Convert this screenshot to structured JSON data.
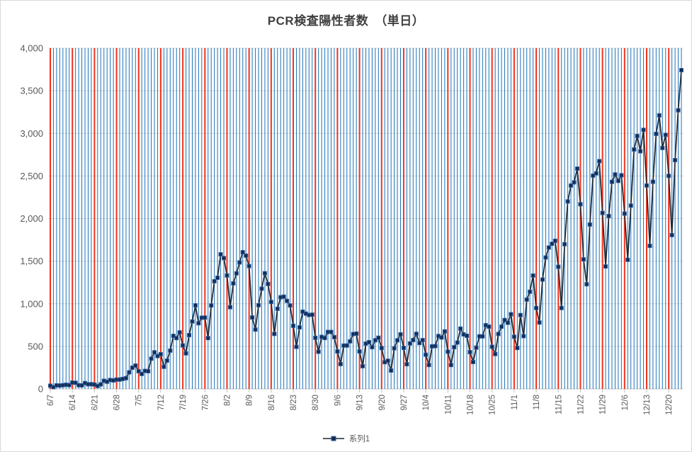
{
  "chart_data": {
    "type": "line",
    "title": "PCR検査陽性者数　（単日）",
    "legend_position": "bottom-center",
    "ylim": [
      0,
      4000
    ],
    "y_tick_step": 500,
    "y_tick_labels": [
      "0",
      "500",
      "1,000",
      "1,500",
      "2,000",
      "2,500",
      "3,000",
      "3,500",
      "4,000"
    ],
    "x_label_interval_days": 7,
    "x_tick_labels": [
      "6/7",
      "6/14",
      "6/21",
      "6/28",
      "7/5",
      "7/12",
      "7/19",
      "7/26",
      "8/2",
      "8/9",
      "8/16",
      "8/23",
      "8/30",
      "9/6",
      "9/13",
      "9/20",
      "9/27",
      "10/4",
      "10/11",
      "10/18",
      "10/25",
      "11/1",
      "11/8",
      "11/15",
      "11/22",
      "11/29",
      "12/6",
      "12/13",
      "12/20"
    ],
    "grid": {
      "horizontal": true,
      "vertical_daily_blue": true,
      "vertical_weekly_red": true
    },
    "x": [
      "6/7",
      "6/8",
      "6/9",
      "6/10",
      "6/11",
      "6/12",
      "6/13",
      "6/14",
      "6/15",
      "6/16",
      "6/17",
      "6/18",
      "6/19",
      "6/20",
      "6/21",
      "6/22",
      "6/23",
      "6/24",
      "6/25",
      "6/26",
      "6/27",
      "6/28",
      "6/29",
      "6/30",
      "7/1",
      "7/2",
      "7/3",
      "7/4",
      "7/5",
      "7/6",
      "7/7",
      "7/8",
      "7/9",
      "7/10",
      "7/11",
      "7/12",
      "7/13",
      "7/14",
      "7/15",
      "7/16",
      "7/17",
      "7/18",
      "7/19",
      "7/20",
      "7/21",
      "7/22",
      "7/23",
      "7/24",
      "7/25",
      "7/26",
      "7/27",
      "7/28",
      "7/29",
      "7/30",
      "7/31",
      "8/1",
      "8/2",
      "8/3",
      "8/4",
      "8/5",
      "8/6",
      "8/7",
      "8/8",
      "8/9",
      "8/10",
      "8/11",
      "8/12",
      "8/13",
      "8/14",
      "8/15",
      "8/16",
      "8/17",
      "8/18",
      "8/19",
      "8/20",
      "8/21",
      "8/22",
      "8/23",
      "8/24",
      "8/25",
      "8/26",
      "8/27",
      "8/28",
      "8/29",
      "8/30",
      "8/31",
      "9/1",
      "9/2",
      "9/3",
      "9/4",
      "9/5",
      "9/6",
      "9/7",
      "9/8",
      "9/9",
      "9/10",
      "9/11",
      "9/12",
      "9/13",
      "9/14",
      "9/15",
      "9/16",
      "9/17",
      "9/18",
      "9/19",
      "9/20",
      "9/21",
      "9/22",
      "9/23",
      "9/24",
      "9/25",
      "9/26",
      "9/27",
      "9/28",
      "9/29",
      "9/30",
      "10/1",
      "10/2",
      "10/3",
      "10/4",
      "10/5",
      "10/6",
      "10/7",
      "10/8",
      "10/9",
      "10/10",
      "10/11",
      "10/12",
      "10/13",
      "10/14",
      "10/15",
      "10/16",
      "10/17",
      "10/18",
      "10/19",
      "10/20",
      "10/21",
      "10/22",
      "10/23",
      "10/24",
      "10/25",
      "10/26",
      "10/27",
      "10/28",
      "10/29",
      "10/30",
      "10/31",
      "11/1",
      "11/2",
      "11/3",
      "11/4",
      "11/5",
      "11/6",
      "11/7",
      "11/8",
      "11/9",
      "11/10",
      "11/11",
      "11/12",
      "11/13",
      "11/14",
      "11/15",
      "11/16",
      "11/17",
      "11/18",
      "11/19",
      "11/20",
      "11/21",
      "11/22",
      "11/23",
      "11/24",
      "11/25",
      "11/26",
      "11/27",
      "11/28",
      "11/29",
      "11/30",
      "12/1",
      "12/2",
      "12/3",
      "12/4",
      "12/5",
      "12/6",
      "12/7",
      "12/8",
      "12/9",
      "12/10",
      "12/11",
      "12/12",
      "12/13",
      "12/14",
      "12/15",
      "12/16",
      "12/17",
      "12/18",
      "12/19",
      "12/20",
      "12/21",
      "12/22",
      "12/23",
      "12/24"
    ],
    "series": [
      {
        "name": "系列1",
        "marker": "square",
        "values": [
          38,
          21,
          42,
          40,
          44,
          49,
          45,
          75,
          72,
          44,
          42,
          69,
          55,
          56,
          51,
          35,
          54,
          96,
          85,
          105,
          100,
          110,
          110,
          118,
          127,
          195,
          250,
          274,
          208,
          176,
          212,
          208,
          355,
          430,
          386,
          408,
          260,
          333,
          450,
          623,
          597,
          664,
          511,
          418,
          632,
          792,
          981,
          771,
          836,
          838,
          597,
          980,
          1264,
          1305,
          1580,
          1536,
          1332,
          960,
          1239,
          1357,
          1485,
          1605,
          1565,
          1442,
          839,
          697,
          983,
          1177,
          1358,
          1232,
          1021,
          646,
          941,
          1076,
          1083,
          1034,
          980,
          741,
          494,
          723,
          907,
          884,
          868,
          872,
          600,
          437,
          611,
          598,
          669,
          669,
          608,
          440,
          292,
          509,
          510,
          559,
          644,
          649,
          440,
          267,
          532,
          549,
          490,
          572,
          601,
          480,
          314,
          331,
          216,
          477,
          571,
          641,
          482,
          290,
          534,
          574,
          647,
          539,
          573,
          402,
          281,
          500,
          503,
          621,
          604,
          675,
          437,
          281,
          490,
          545,
          708,
          640,
          624,
          432,
          316,
          485,
          618,
          617,
          748,
          731,
          495,
          410,
          645,
          731,
          809,
          777,
          877,
          613,
          481,
          867,
          620,
          1049,
          1141,
          1331,
          950,
          780,
          1284,
          1543,
          1660,
          1704,
          1739,
          1434,
          950,
          1699,
          2201,
          2388,
          2425,
          2586,
          2168,
          1521,
          1229,
          1930,
          2504,
          2531,
          2674,
          2066,
          1438,
          2030,
          2431,
          2518,
          2442,
          2508,
          2058,
          1516,
          2152,
          2811,
          2969,
          2790,
          3041,
          2388,
          1680,
          2432,
          2994,
          3211,
          2829,
          2982,
          2501,
          1806,
          2686,
          3271,
          3742
        ]
      }
    ]
  },
  "colors": {
    "title_text": "#404040",
    "axis_text": "#595959",
    "horizontal_gridline": "#D9D9D9",
    "axis_line": "#C6C6C6",
    "tick_mark": "#BFBFBF",
    "daily_line_blue": "#1C72B8",
    "weekly_line_red": "#F2321E",
    "series_line": "#23272F",
    "marker_fill": "#132A52",
    "marker_border": "#2E5F9E",
    "chart_border": "#D9D9D9",
    "background": "#FFFFFF"
  }
}
